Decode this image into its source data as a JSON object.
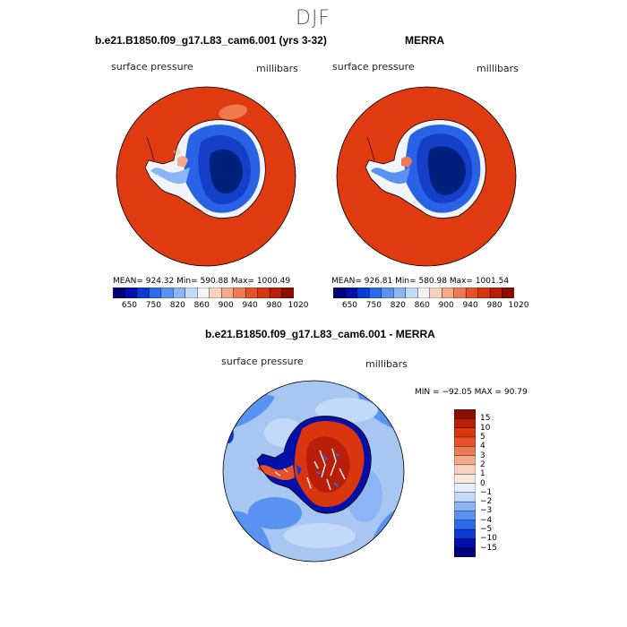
{
  "season": "DJF",
  "panels": [
    {
      "title": "b.e21.B1850.f09_g17.L83_cam6.001 (yrs 3-32)",
      "variable": "surface pressure",
      "units": "millibars",
      "stats": "MEAN= 924.32   Min= 590.88   Max= 1000.49"
    },
    {
      "title": "MERRA",
      "variable": "surface pressure",
      "units": "millibars",
      "stats": "MEAN= 926.81   Min= 580.98   Max= 1001.54"
    }
  ],
  "colorbar_labels": [
    "650",
    "750",
    "820",
    "860",
    "900",
    "940",
    "980",
    "1020"
  ],
  "colorbar_colors": [
    "#00007a",
    "#0010a8",
    "#0b3bd4",
    "#2a6af0",
    "#5a92f2",
    "#8db5f5",
    "#c2d9f8",
    "#f3f3f3",
    "#f9d2bf",
    "#f4a98a",
    "#ee7a55",
    "#e8502a",
    "#d93610",
    "#b81e08",
    "#8c0d00"
  ],
  "diff": {
    "title": "b.e21.B1850.f09_g17.L83_cam6.001 - MERRA",
    "variable": "surface pressure",
    "units": "millibars",
    "minmax": "MIN = −92.05  MAX =  90.79",
    "colorbar_labels": [
      "15",
      "10",
      "5",
      "4",
      "3",
      "2",
      "1",
      "0",
      "−1",
      "−2",
      "−3",
      "−4",
      "−5",
      "−10",
      "−15"
    ],
    "colorbar_colors": [
      "#8c0d00",
      "#b81e08",
      "#d93610",
      "#e8502a",
      "#ee7a55",
      "#f4a98a",
      "#f9d2bf",
      "#fbe8de",
      "#e6eefb",
      "#c2d9f8",
      "#8db5f5",
      "#5a92f2",
      "#2a6af0",
      "#0b3bd4",
      "#0010a8",
      "#00007a"
    ]
  },
  "colors": {
    "ocean_high": "#e03a10",
    "ice_deep": "#00207c",
    "diff_ocean": "#8fb8f0"
  }
}
